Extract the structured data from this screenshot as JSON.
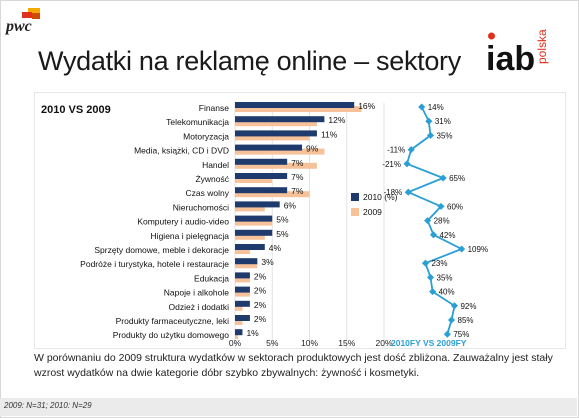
{
  "header": {
    "brand": "pwc",
    "title": "Wydatki na reklamę online – sektory",
    "partner_brand": "iab",
    "partner_suffix": "polska"
  },
  "chart_data": {
    "type": "bar",
    "title": "2010 VS 2009",
    "categories": [
      "Finanse",
      "Telekomunikacja",
      "Motoryzacja",
      "Media, książki, CD i DVD",
      "Handel",
      "Żywność",
      "Czas wolny",
      "Nieruchomości",
      "Komputery i audio-video",
      "Higiena i pielęgnacja",
      "Sprzęty domowe, meble i dekoracje",
      "Podróże i turystyka, hotele i restauracje",
      "Edukacja",
      "Napoje i alkohole",
      "Odzież i dodatki",
      "Produkty farmaceutyczne, leki",
      "Produkty do użytku domowego"
    ],
    "series": [
      {
        "name": "2010 (%)",
        "color": "#1f3b6e",
        "values": [
          16,
          12,
          11,
          9,
          7,
          7,
          7,
          6,
          5,
          5,
          4,
          3,
          2,
          2,
          2,
          2,
          1
        ]
      },
      {
        "name": "2009",
        "color": "#f7c29a",
        "values": [
          17,
          11,
          10,
          12,
          11,
          5,
          10,
          4,
          5,
          4,
          2,
          3,
          2,
          2,
          1,
          1,
          0.4
        ]
      }
    ],
    "value_labels": [
      "16%",
      "12%",
      "11%",
      "9%",
      "7%",
      "7%",
      "7%",
      "6%",
      "5%",
      "5%",
      "4%",
      "3%",
      "2%",
      "2%",
      "2%",
      "2%",
      "1%"
    ],
    "xticks": [
      "0%",
      "5%",
      "10%",
      "15%",
      "20%"
    ],
    "xlim": [
      0,
      20
    ],
    "growth": {
      "name": "2010FY VS 2009FY",
      "color": "#2a9fd6",
      "values": [
        14,
        31,
        35,
        -11,
        -21,
        65,
        -18,
        60,
        28,
        42,
        109,
        23,
        35,
        40,
        92,
        85,
        75
      ],
      "labels": [
        "14%",
        "31%",
        "35%",
        "-11%",
        "-21%",
        "65%",
        "-18%",
        "60%",
        "28%",
        "42%",
        "109%",
        "23%",
        "35%",
        "40%",
        "92%",
        "85%",
        "75%"
      ]
    },
    "legend_position": "center-right"
  },
  "caption": "W porównaniu do 2009 struktura wydatków w sektorach produktowych jest dość zbliżona. Zauważalny jest stały wzrost wydatków na dwie kategorie dóbr szybko zbywalnych: żywność i kosmetyki.",
  "footnote": "2009: N=31; 2010: N=29"
}
